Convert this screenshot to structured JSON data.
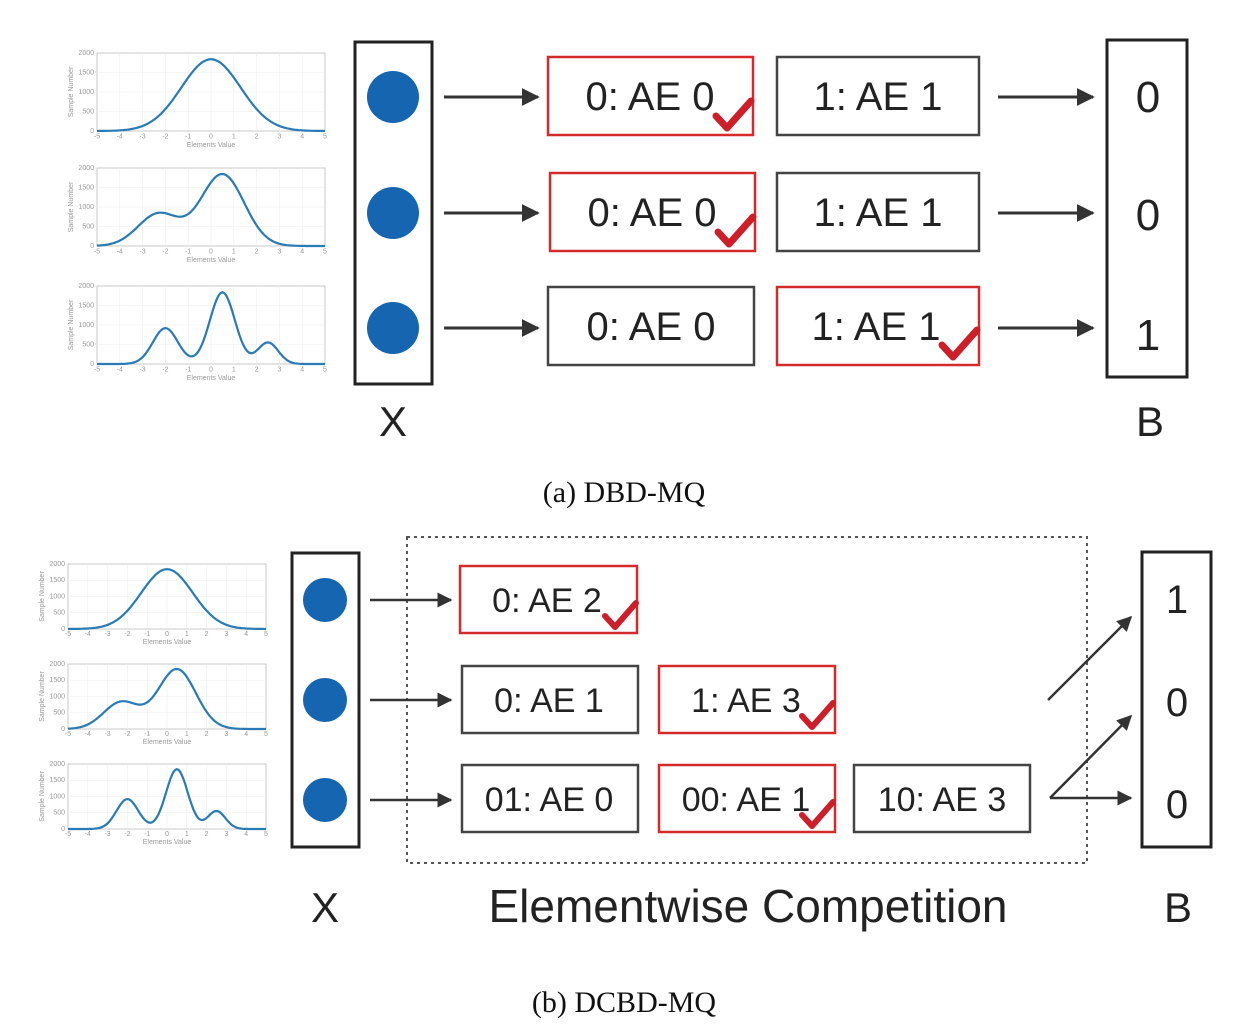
{
  "panel_a": {
    "caption": "(a)  DBD-MQ",
    "x_label": "X",
    "b_label": "B",
    "rows": [
      {
        "boxes": [
          {
            "text": "0: AE 0",
            "selected": true
          },
          {
            "text": "1: AE 1",
            "selected": false
          }
        ],
        "bit": "0"
      },
      {
        "boxes": [
          {
            "text": "0: AE 0",
            "selected": true
          },
          {
            "text": "1: AE 1",
            "selected": false
          }
        ],
        "bit": "0"
      },
      {
        "boxes": [
          {
            "text": "0: AE 0",
            "selected": false
          },
          {
            "text": "1: AE 1",
            "selected": true
          }
        ],
        "bit": "1"
      }
    ]
  },
  "panel_b": {
    "caption": "(b)  DCBD-MQ",
    "x_label": "X",
    "b_label": "B",
    "competition_label": "Elementwise Competition",
    "rows": [
      {
        "boxes": [
          {
            "text": "0: AE 2",
            "selected": true
          }
        ],
        "bit": "1"
      },
      {
        "boxes": [
          {
            "text": "0: AE 1",
            "selected": false
          },
          {
            "text": "1: AE 3",
            "selected": true
          }
        ],
        "bit": "0"
      },
      {
        "boxes": [
          {
            "text": "01: AE 0",
            "selected": false
          },
          {
            "text": "00: AE 1",
            "selected": true
          },
          {
            "text": "10: AE 3",
            "selected": false
          }
        ],
        "bit": "0"
      }
    ]
  },
  "distribution_plots": {
    "y_label": "Sample Number",
    "x_label": "Elements Value",
    "y_ticks": [
      "2000",
      "1500",
      "1000",
      "500",
      "0"
    ],
    "x_ticks": [
      "-5",
      "-4",
      "-3",
      "-2",
      "-1",
      "0",
      "1",
      "2",
      "3",
      "4",
      "5"
    ]
  },
  "colors": {
    "selected_border": "#d42a2a",
    "check": "#cc1f2a",
    "node": "#1565b0",
    "curve": "#2a7ab5",
    "arrow": "#333333"
  }
}
